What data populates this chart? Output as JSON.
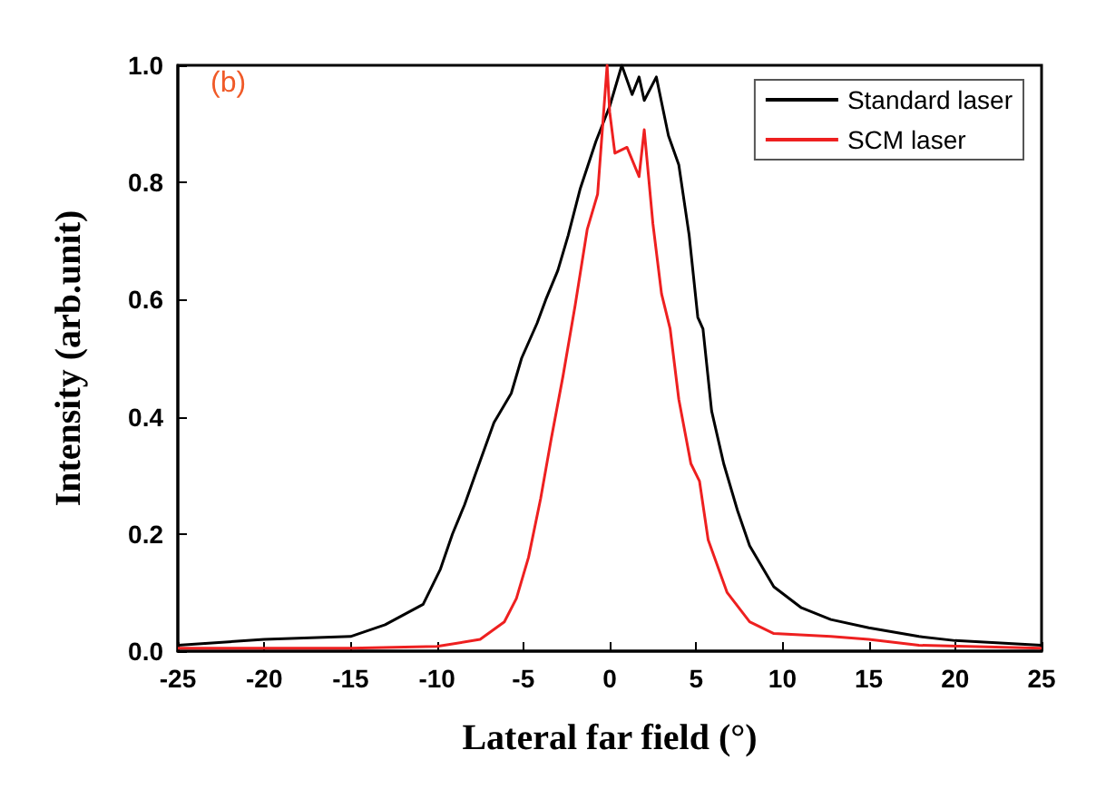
{
  "chart_data": {
    "type": "line",
    "xlabel": "Lateral far field (°)",
    "ylabel": "Intensity (arb.unit)",
    "annotations": [
      "(b)"
    ],
    "xlim": [
      -25,
      25
    ],
    "xticks": [
      -25,
      -20,
      -15,
      -10,
      -5,
      0,
      5,
      10,
      15,
      20,
      25
    ],
    "ylim": [
      0,
      1.0
    ],
    "yticks": [
      {
        "value": 0,
        "label": "0.0"
      },
      {
        "value": 0.2,
        "label": "0.2"
      },
      {
        "value": 0.4,
        "label": "0.4"
      },
      {
        "value": 0.6,
        "label": "0.6"
      },
      {
        "value": 0.8,
        "label": "0.8"
      },
      {
        "value": 1.0,
        "label": "1.0"
      }
    ],
    "grid": false,
    "legend": "top right",
    "marker": "none",
    "line_style": "solid",
    "series": [
      {
        "name": "Standard laser",
        "color": "#000000",
        "x": [
          -25,
          -20,
          -15,
          -13,
          -10.8,
          -9.8,
          -9.1,
          -8.4,
          -7.8,
          -6.7,
          -5.7,
          -5.1,
          -4.2,
          -3.7,
          -3.0,
          -2.4,
          -1.7,
          -0.8,
          0,
          0.7,
          1.3,
          1.7,
          2.0,
          2.7,
          3.4,
          4.0,
          4.6,
          5.1,
          5.4,
          5.9,
          6.6,
          7.4,
          8.1,
          9.5,
          11.1,
          12.8,
          15,
          17.9,
          20,
          25
        ],
        "values": [
          0.01,
          0.02,
          0.025,
          0.045,
          0.08,
          0.14,
          0.2,
          0.25,
          0.3,
          0.39,
          0.44,
          0.5,
          0.56,
          0.6,
          0.65,
          0.71,
          0.79,
          0.87,
          0.93,
          1.0,
          0.95,
          0.98,
          0.94,
          0.98,
          0.88,
          0.83,
          0.71,
          0.57,
          0.55,
          0.41,
          0.32,
          0.24,
          0.18,
          0.11,
          0.074,
          0.054,
          0.04,
          0.025,
          0.018,
          0.01
        ]
      },
      {
        "name": "SCM laser",
        "color": "#ee2020",
        "x": [
          -25,
          -15,
          -10,
          -7.5,
          -6.1,
          -5.4,
          -4.7,
          -4.0,
          -3.4,
          -2.7,
          -2.0,
          -1.3,
          -0.7,
          -0.15,
          0,
          0.3,
          1.0,
          1.7,
          2.0,
          2.5,
          3.0,
          3.5,
          4.0,
          4.7,
          5.2,
          5.7,
          6.8,
          8.1,
          9.5,
          12.8,
          15,
          17.9,
          25
        ],
        "values": [
          0.005,
          0.005,
          0.008,
          0.02,
          0.05,
          0.09,
          0.16,
          0.26,
          0.36,
          0.47,
          0.59,
          0.72,
          0.78,
          1.0,
          0.92,
          0.85,
          0.86,
          0.81,
          0.89,
          0.73,
          0.61,
          0.55,
          0.43,
          0.32,
          0.29,
          0.19,
          0.1,
          0.05,
          0.03,
          0.025,
          0.02,
          0.01,
          0.005
        ]
      }
    ]
  }
}
